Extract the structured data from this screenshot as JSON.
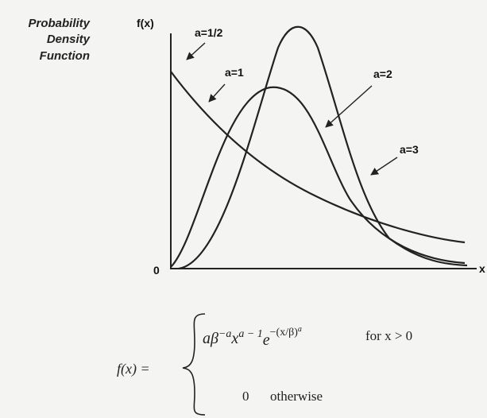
{
  "plot": {
    "title_lines": [
      "Probability",
      "Density",
      "Function"
    ],
    "y_label": "f(x)",
    "x_label": "x",
    "origin": "0",
    "curve_labels": [
      "a=1/2",
      "a=1",
      "a=2",
      "a=3"
    ]
  },
  "formula": {
    "lhs": "f(x) =",
    "case1_parts": [
      "aβ",
      "−a",
      "x",
      "a − 1",
      "e",
      "−(x/β)",
      "a"
    ],
    "condition1": "for x > 0",
    "case2": "0",
    "condition2": "otherwise"
  }
}
